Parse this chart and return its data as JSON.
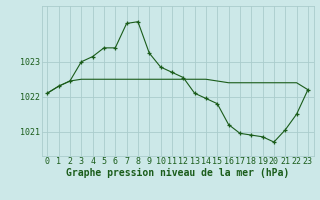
{
  "background_color": "#cce8e8",
  "grid_color": "#aacccc",
  "line_color": "#1a5c1a",
  "marker_color": "#1a5c1a",
  "xlabel": "Graphe pression niveau de la mer (hPa)",
  "xlabel_fontsize": 7,
  "tick_fontsize": 6,
  "ytick_labels": [
    1021,
    1022,
    1023
  ],
  "ylim": [
    1020.3,
    1024.6
  ],
  "xlim": [
    -0.5,
    23.5
  ],
  "xticks": [
    0,
    1,
    2,
    3,
    4,
    5,
    6,
    7,
    8,
    9,
    10,
    11,
    12,
    13,
    14,
    15,
    16,
    17,
    18,
    19,
    20,
    21,
    22,
    23
  ],
  "series1_x": [
    0,
    1,
    2,
    3,
    4,
    5,
    6,
    7,
    8,
    9,
    10,
    11,
    12,
    13,
    14,
    15,
    16,
    17,
    18,
    19,
    20,
    21,
    22,
    23
  ],
  "series1_y": [
    1022.1,
    1022.3,
    1022.45,
    1022.5,
    1022.5,
    1022.5,
    1022.5,
    1022.5,
    1022.5,
    1022.5,
    1022.5,
    1022.5,
    1022.5,
    1022.5,
    1022.5,
    1022.45,
    1022.4,
    1022.4,
    1022.4,
    1022.4,
    1022.4,
    1022.4,
    1022.4,
    1022.2
  ],
  "series2_x": [
    0,
    1,
    2,
    3,
    4,
    5,
    6,
    7,
    8,
    9,
    10,
    11,
    12,
    13,
    14,
    15,
    16,
    17,
    18,
    19,
    20,
    21,
    22,
    23
  ],
  "series2_y": [
    1022.1,
    1022.3,
    1022.45,
    1023.0,
    1023.15,
    1023.4,
    1023.4,
    1024.1,
    1024.15,
    1023.25,
    1022.85,
    1022.7,
    1022.55,
    1022.1,
    1021.95,
    1021.8,
    1021.2,
    1020.95,
    1020.9,
    1020.85,
    1020.7,
    1021.05,
    1021.5,
    1022.2
  ]
}
